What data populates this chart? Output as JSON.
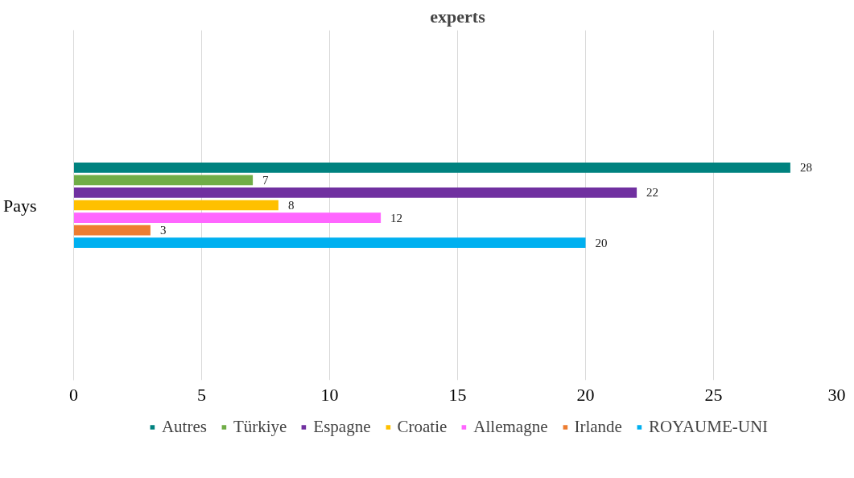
{
  "chart_data": {
    "type": "bar",
    "orientation": "horizontal",
    "title": "experts",
    "categories": [
      "Pays"
    ],
    "series": [
      {
        "name": "Autres",
        "color": "#00827f",
        "values": [
          28
        ]
      },
      {
        "name": "Türkiye",
        "color": "#70ad47",
        "values": [
          7
        ]
      },
      {
        "name": "Espagne",
        "color": "#7030a0",
        "values": [
          22
        ]
      },
      {
        "name": "Croatie",
        "color": "#ffc000",
        "values": [
          8
        ]
      },
      {
        "name": "Allemagne",
        "color": "#ff66ff",
        "values": [
          12
        ]
      },
      {
        "name": "Irlande",
        "color": "#ed7d31",
        "values": [
          3
        ]
      },
      {
        "name": "ROYAUME-UNI",
        "color": "#00b0f0",
        "values": [
          20
        ]
      }
    ],
    "xlim": [
      0,
      30
    ],
    "xticks": [
      0,
      5,
      10,
      15,
      20,
      25,
      30
    ],
    "grid": "x",
    "legend": "bottom",
    "data_labels": true
  }
}
